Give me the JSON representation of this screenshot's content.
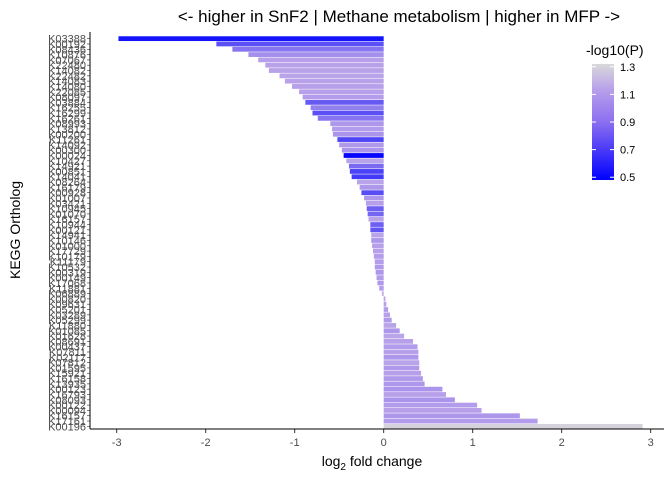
{
  "chart_data": {
    "type": "bar",
    "orientation": "horizontal",
    "title": "<- higher in SnF2 | Methane metabolism | higher in MFP ->",
    "xlabel_main": "log",
    "xlabel_sub": "2",
    "xlabel_rest": " fold change",
    "ylabel": "KEGG Ortholog",
    "xlim": [
      -3.3,
      3.15
    ],
    "x_ticks": [
      -3,
      -2,
      -1,
      0,
      1,
      2,
      3
    ],
    "x_tick_labels": [
      "-3",
      "-2",
      "-1",
      "0",
      "1",
      "2",
      "3"
    ],
    "grid": false,
    "legend": {
      "title": "-log10(P)",
      "placement": "right",
      "range": [
        0.48,
        1.32
      ],
      "ticks": [
        1.3,
        1.1,
        0.9,
        0.7,
        0.5
      ],
      "tick_labels": [
        "1.3",
        "1.1",
        "0.9",
        "0.7",
        "0.5"
      ],
      "colors": [
        "#0000ff",
        "#b8a0ea",
        "#d9d9d9"
      ]
    },
    "bars": [
      {
        "label": "K03388",
        "value": -2.98,
        "p": 0.55
      },
      {
        "label": "K00192",
        "value": -1.88,
        "p": 0.78
      },
      {
        "label": "K08436",
        "value": -1.7,
        "p": 0.92
      },
      {
        "label": "K10876",
        "value": -1.52,
        "p": 1.02
      },
      {
        "label": "K07067",
        "value": -1.41,
        "p": 1.08
      },
      {
        "label": "K22480",
        "value": -1.33,
        "p": 1.09
      },
      {
        "label": "K14082",
        "value": -1.29,
        "p": 1.09
      },
      {
        "label": "K22482",
        "value": -1.17,
        "p": 1.1
      },
      {
        "label": "K14083",
        "value": -1.11,
        "p": 1.09
      },
      {
        "label": "K14080",
        "value": -1.03,
        "p": 1.08
      },
      {
        "label": "K22085",
        "value": -0.95,
        "p": 1.08
      },
      {
        "label": "K08097",
        "value": -0.91,
        "p": 1.07
      },
      {
        "label": "K03884",
        "value": -0.88,
        "p": 0.82
      },
      {
        "label": "K16255",
        "value": -0.82,
        "p": 0.96
      },
      {
        "label": "K16299",
        "value": -0.8,
        "p": 0.78
      },
      {
        "label": "K16261",
        "value": -0.74,
        "p": 0.92
      },
      {
        "label": "K08993",
        "value": -0.6,
        "p": 1.05
      },
      {
        "label": "K13812",
        "value": -0.58,
        "p": 1.07
      },
      {
        "label": "K00200",
        "value": -0.57,
        "p": 1.04
      },
      {
        "label": "K11261",
        "value": -0.52,
        "p": 0.74
      },
      {
        "label": "K14092",
        "value": -0.5,
        "p": 1.06
      },
      {
        "label": "K00300",
        "value": -0.47,
        "p": 1.04
      },
      {
        "label": "K00024",
        "value": -0.45,
        "p": 0.5
      },
      {
        "label": "K10427",
        "value": -0.42,
        "p": 1.1
      },
      {
        "label": "K14921",
        "value": -0.39,
        "p": 0.88
      },
      {
        "label": "K00851",
        "value": -0.38,
        "p": 0.73
      },
      {
        "label": "K14041",
        "value": -0.36,
        "p": 0.7
      },
      {
        "label": "K08264",
        "value": -0.3,
        "p": 1.1
      },
      {
        "label": "K16179",
        "value": -0.27,
        "p": 1.05
      },
      {
        "label": "K00928",
        "value": -0.25,
        "p": 0.77
      },
      {
        "label": "K01007",
        "value": -0.22,
        "p": 1.05
      },
      {
        "label": "K03421",
        "value": -0.2,
        "p": 1.08
      },
      {
        "label": "K10945",
        "value": -0.19,
        "p": 0.84
      },
      {
        "label": "K01070",
        "value": -0.18,
        "p": 0.86
      },
      {
        "label": "K16157",
        "value": -0.17,
        "p": 1.1
      },
      {
        "label": "K10944",
        "value": -0.15,
        "p": 0.84
      },
      {
        "label": "K00121",
        "value": -0.15,
        "p": 0.8
      },
      {
        "label": "K14941",
        "value": -0.14,
        "p": 1.1
      },
      {
        "label": "K10146",
        "value": -0.14,
        "p": 1.05
      },
      {
        "label": "K01000",
        "value": -0.13,
        "p": 1.08
      },
      {
        "label": "K17729",
        "value": -0.12,
        "p": 1.08
      },
      {
        "label": "K10179",
        "value": -0.11,
        "p": 1.07
      },
      {
        "label": "K11179",
        "value": -0.1,
        "p": 1.07
      },
      {
        "label": "K10532",
        "value": -0.1,
        "p": 1.06
      },
      {
        "label": "K00319",
        "value": -0.09,
        "p": 1.05
      },
      {
        "label": "K00149",
        "value": -0.08,
        "p": 1.07
      },
      {
        "label": "K17068",
        "value": -0.07,
        "p": 1.06
      },
      {
        "label": "K11881",
        "value": -0.05,
        "p": 1.07
      },
      {
        "label": "K06889",
        "value": -0.02,
        "p": 1.15
      },
      {
        "label": "K00820",
        "value": 0.02,
        "p": 1.1
      },
      {
        "label": "K09631",
        "value": 0.03,
        "p": 1.08
      },
      {
        "label": "K05201",
        "value": 0.05,
        "p": 1.07
      },
      {
        "label": "K03289",
        "value": 0.07,
        "p": 1.08
      },
      {
        "label": "K05299",
        "value": 0.09,
        "p": 1.06
      },
      {
        "label": "K11880",
        "value": 0.14,
        "p": 1.1
      },
      {
        "label": "K01085",
        "value": 0.18,
        "p": 1.05
      },
      {
        "label": "K01628",
        "value": 0.23,
        "p": 1.1
      },
      {
        "label": "K08691",
        "value": 0.33,
        "p": 1.08
      },
      {
        "label": "K00437",
        "value": 0.38,
        "p": 1.07
      },
      {
        "label": "K07811",
        "value": 0.39,
        "p": 1.08
      },
      {
        "label": "K02117",
        "value": 0.39,
        "p": 1.05
      },
      {
        "label": "K07812",
        "value": 0.4,
        "p": 1.1
      },
      {
        "label": "K01595",
        "value": 0.4,
        "p": 1.06
      },
      {
        "label": "K15921",
        "value": 0.42,
        "p": 1.08
      },
      {
        "label": "K16158",
        "value": 0.44,
        "p": 1.06
      },
      {
        "label": "K13935",
        "value": 0.46,
        "p": 1.05
      },
      {
        "label": "K00123",
        "value": 0.66,
        "p": 1.04
      },
      {
        "label": "K16793",
        "value": 0.7,
        "p": 1.08
      },
      {
        "label": "K08093",
        "value": 0.8,
        "p": 1.04
      },
      {
        "label": "K00122",
        "value": 1.05,
        "p": 1.07
      },
      {
        "label": "K00094",
        "value": 1.1,
        "p": 1.08
      },
      {
        "label": "K16157b",
        "value": 1.53,
        "p": 1.05
      },
      {
        "label": "K17161",
        "value": 1.73,
        "p": 1.07
      },
      {
        "label": "K00196",
        "value": 2.91,
        "p": 1.29
      }
    ]
  }
}
